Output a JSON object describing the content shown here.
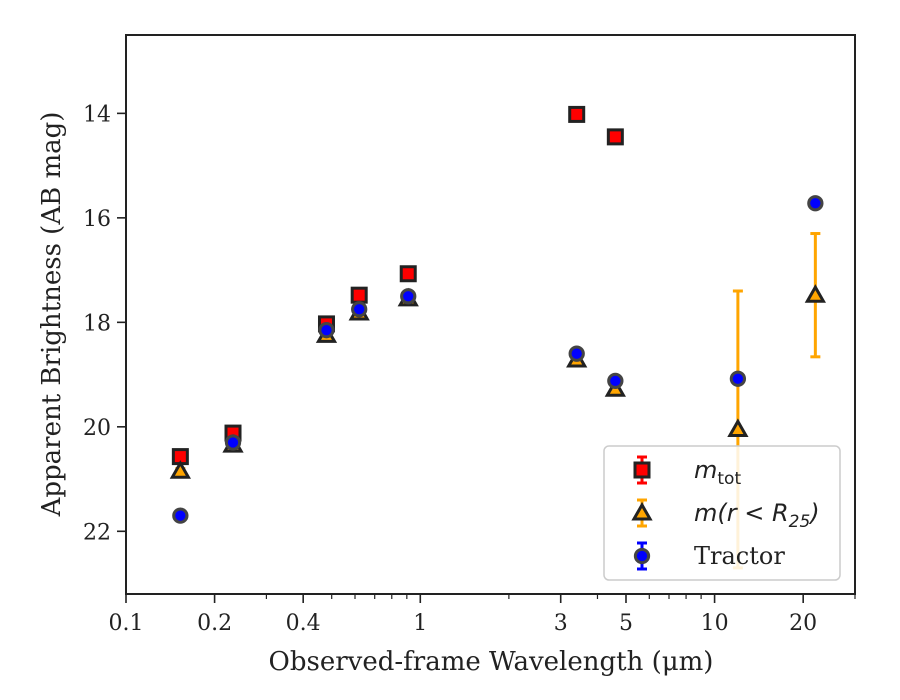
{
  "chart_data": {
    "type": "scatter",
    "xlabel": "Observed-frame Wavelength (μm)",
    "ylabel": "Apparent Brightness (AB mag)",
    "x_scale": "log",
    "xlim": [
      0.1,
      30
    ],
    "ylim": [
      23.2,
      12.5
    ],
    "y_inverted": true,
    "x_ticks": [
      {
        "value": 0.1,
        "label": "0.1"
      },
      {
        "value": 0.2,
        "label": "0.2"
      },
      {
        "value": 0.4,
        "label": "0.4"
      },
      {
        "value": 1,
        "label": "1"
      },
      {
        "value": 3,
        "label": "3"
      },
      {
        "value": 5,
        "label": "5"
      },
      {
        "value": 10,
        "label": "10"
      },
      {
        "value": 20,
        "label": "20"
      }
    ],
    "y_ticks": [
      {
        "value": 14,
        "label": "14"
      },
      {
        "value": 16,
        "label": "16"
      },
      {
        "value": 18,
        "label": "18"
      },
      {
        "value": 20,
        "label": "20"
      },
      {
        "value": 22,
        "label": "22"
      }
    ],
    "legend_position": "lower-right",
    "grid": false,
    "series": [
      {
        "name": "m_tot",
        "legend_label": "m",
        "legend_sub": "tot",
        "marker": "square",
        "color": "#ff0000",
        "edge": "#222222",
        "errorbar_color": "#ff0000",
        "points": [
          {
            "x": 0.153,
            "y": 20.57,
            "yerr": 0.05
          },
          {
            "x": 0.231,
            "y": 20.12,
            "yerr": 0.05
          },
          {
            "x": 0.48,
            "y": 18.03,
            "yerr": 0.03
          },
          {
            "x": 0.62,
            "y": 17.48,
            "yerr": 0.03
          },
          {
            "x": 0.91,
            "y": 17.07,
            "yerr": 0.03
          },
          {
            "x": 3.4,
            "y": 14.02,
            "yerr": 0.02
          },
          {
            "x": 4.6,
            "y": 14.45,
            "yerr": 0.02
          }
        ]
      },
      {
        "name": "m(r<R25)",
        "legend_label": "m(r < R",
        "legend_sub": "25",
        "legend_suffix": ")",
        "marker": "triangle",
        "color": "#ffa500",
        "edge": "#222222",
        "errorbar_color": "#ffa500",
        "points": [
          {
            "x": 0.153,
            "y": 20.85,
            "yerr": 0.05
          },
          {
            "x": 0.231,
            "y": 20.35,
            "yerr": 0.05
          },
          {
            "x": 0.48,
            "y": 18.25,
            "yerr": 0.03
          },
          {
            "x": 0.62,
            "y": 17.82,
            "yerr": 0.03
          },
          {
            "x": 0.91,
            "y": 17.55,
            "yerr": 0.03
          },
          {
            "x": 3.4,
            "y": 18.72,
            "yerr": 0.03
          },
          {
            "x": 4.6,
            "y": 19.28,
            "yerr": 0.04
          },
          {
            "x": 12.0,
            "y": 20.05,
            "yerr": 2.65
          },
          {
            "x": 22.0,
            "y": 17.48,
            "yerr": 1.18
          }
        ]
      },
      {
        "name": "Tractor",
        "legend_label": "Tractor",
        "marker": "circle",
        "color": "#0000ff",
        "edge": "#444444",
        "errorbar_color": "#0000ff",
        "points": [
          {
            "x": 0.153,
            "y": 21.7,
            "yerr": 0.05
          },
          {
            "x": 0.231,
            "y": 20.3,
            "yerr": 0.05
          },
          {
            "x": 0.48,
            "y": 18.15,
            "yerr": 0.03
          },
          {
            "x": 0.62,
            "y": 17.75,
            "yerr": 0.03
          },
          {
            "x": 0.91,
            "y": 17.5,
            "yerr": 0.03
          },
          {
            "x": 3.4,
            "y": 18.6,
            "yerr": 0.03
          },
          {
            "x": 4.6,
            "y": 19.12,
            "yerr": 0.04
          },
          {
            "x": 12.0,
            "y": 19.08,
            "yerr": 0.06
          },
          {
            "x": 22.0,
            "y": 15.72,
            "yerr": 0.06
          }
        ]
      }
    ]
  }
}
